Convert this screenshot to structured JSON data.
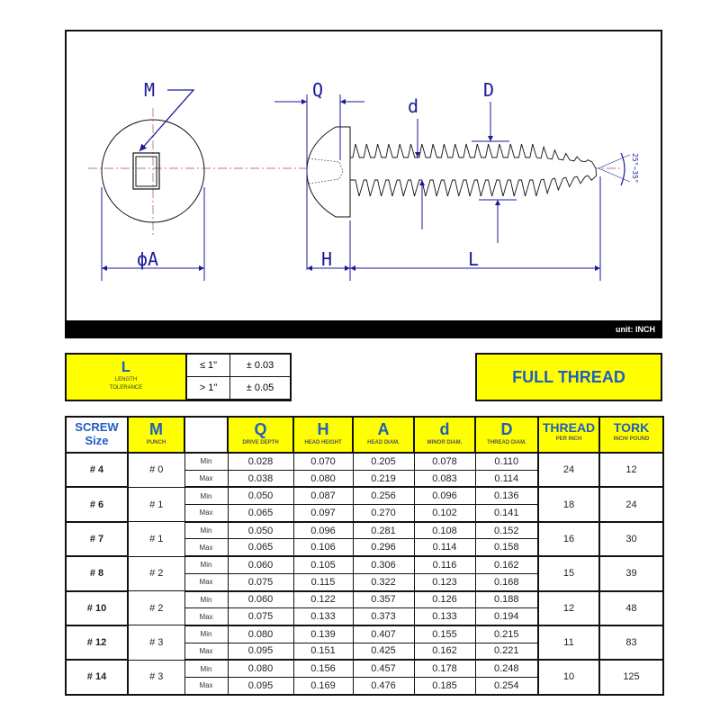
{
  "drawing": {
    "labels": {
      "M": "M",
      "A": "ϕA",
      "Q": "Q",
      "H": "H",
      "d": "d",
      "D": "D",
      "L": "L",
      "angle": "25°~35°"
    },
    "unit": "unit: INCH",
    "line_color": "#1a1a9a"
  },
  "tolerance": {
    "symbol": "L",
    "label_line1": "LENGTH",
    "label_line2": "TOLERANCE",
    "rows": [
      {
        "range": "≤ 1\"",
        "value": "± 0.03"
      },
      {
        "range": "> 1\"",
        "value": "± 0.05"
      }
    ]
  },
  "thread_type": "FULL THREAD",
  "colors": {
    "yellow": "#ffff00",
    "blue_text": "#1f5fbf"
  },
  "table": {
    "headers": {
      "screw": "SCREW",
      "size": "Size",
      "M": "M",
      "M_sub": "PUNCH",
      "Q": "Q",
      "Q_sub": "DRIVE DEPTH",
      "H": "H",
      "H_sub": "HEAD HEIGHT",
      "A": "A",
      "A_sub": "HEAD DIAM.",
      "d": "d",
      "d_sub": "MINOR DIAM.",
      "D": "D",
      "D_sub": "THREAD DIAM.",
      "thread": "THREAD",
      "thread_sub": "PER INCH",
      "tork": "TORK",
      "tork_sub": "INCH/ POUND"
    },
    "min_label": "Min",
    "max_label": "Max",
    "rows": [
      {
        "size": "# 4",
        "punch": "# 0",
        "min": [
          "0.028",
          "0.070",
          "0.205",
          "0.078",
          "0.110"
        ],
        "max": [
          "0.038",
          "0.080",
          "0.219",
          "0.083",
          "0.114"
        ],
        "thread": "24",
        "tork": "12"
      },
      {
        "size": "# 6",
        "punch": "# 1",
        "min": [
          "0.050",
          "0.087",
          "0.256",
          "0.096",
          "0.136"
        ],
        "max": [
          "0.065",
          "0.097",
          "0.270",
          "0.102",
          "0.141"
        ],
        "thread": "18",
        "tork": "24"
      },
      {
        "size": "# 7",
        "punch": "# 1",
        "min": [
          "0.050",
          "0.096",
          "0.281",
          "0.108",
          "0.152"
        ],
        "max": [
          "0.065",
          "0.106",
          "0.296",
          "0.114",
          "0.158"
        ],
        "thread": "16",
        "tork": "30"
      },
      {
        "size": "# 8",
        "punch": "# 2",
        "min": [
          "0.060",
          "0.105",
          "0.306",
          "0.116",
          "0.162"
        ],
        "max": [
          "0.075",
          "0.115",
          "0.322",
          "0.123",
          "0.168"
        ],
        "thread": "15",
        "tork": "39"
      },
      {
        "size": "# 10",
        "punch": "# 2",
        "min": [
          "0.060",
          "0.122",
          "0.357",
          "0.126",
          "0.188"
        ],
        "max": [
          "0.075",
          "0.133",
          "0.373",
          "0.133",
          "0.194"
        ],
        "thread": "12",
        "tork": "48"
      },
      {
        "size": "# 12",
        "punch": "# 3",
        "min": [
          "0.080",
          "0.139",
          "0.407",
          "0.155",
          "0.215"
        ],
        "max": [
          "0.095",
          "0.151",
          "0.425",
          "0.162",
          "0.221"
        ],
        "thread": "11",
        "tork": "83"
      },
      {
        "size": "# 14",
        "punch": "# 3",
        "min": [
          "0.080",
          "0.156",
          "0.457",
          "0.178",
          "0.248"
        ],
        "max": [
          "0.095",
          "0.169",
          "0.476",
          "0.185",
          "0.254"
        ],
        "thread": "10",
        "tork": "125"
      }
    ]
  }
}
